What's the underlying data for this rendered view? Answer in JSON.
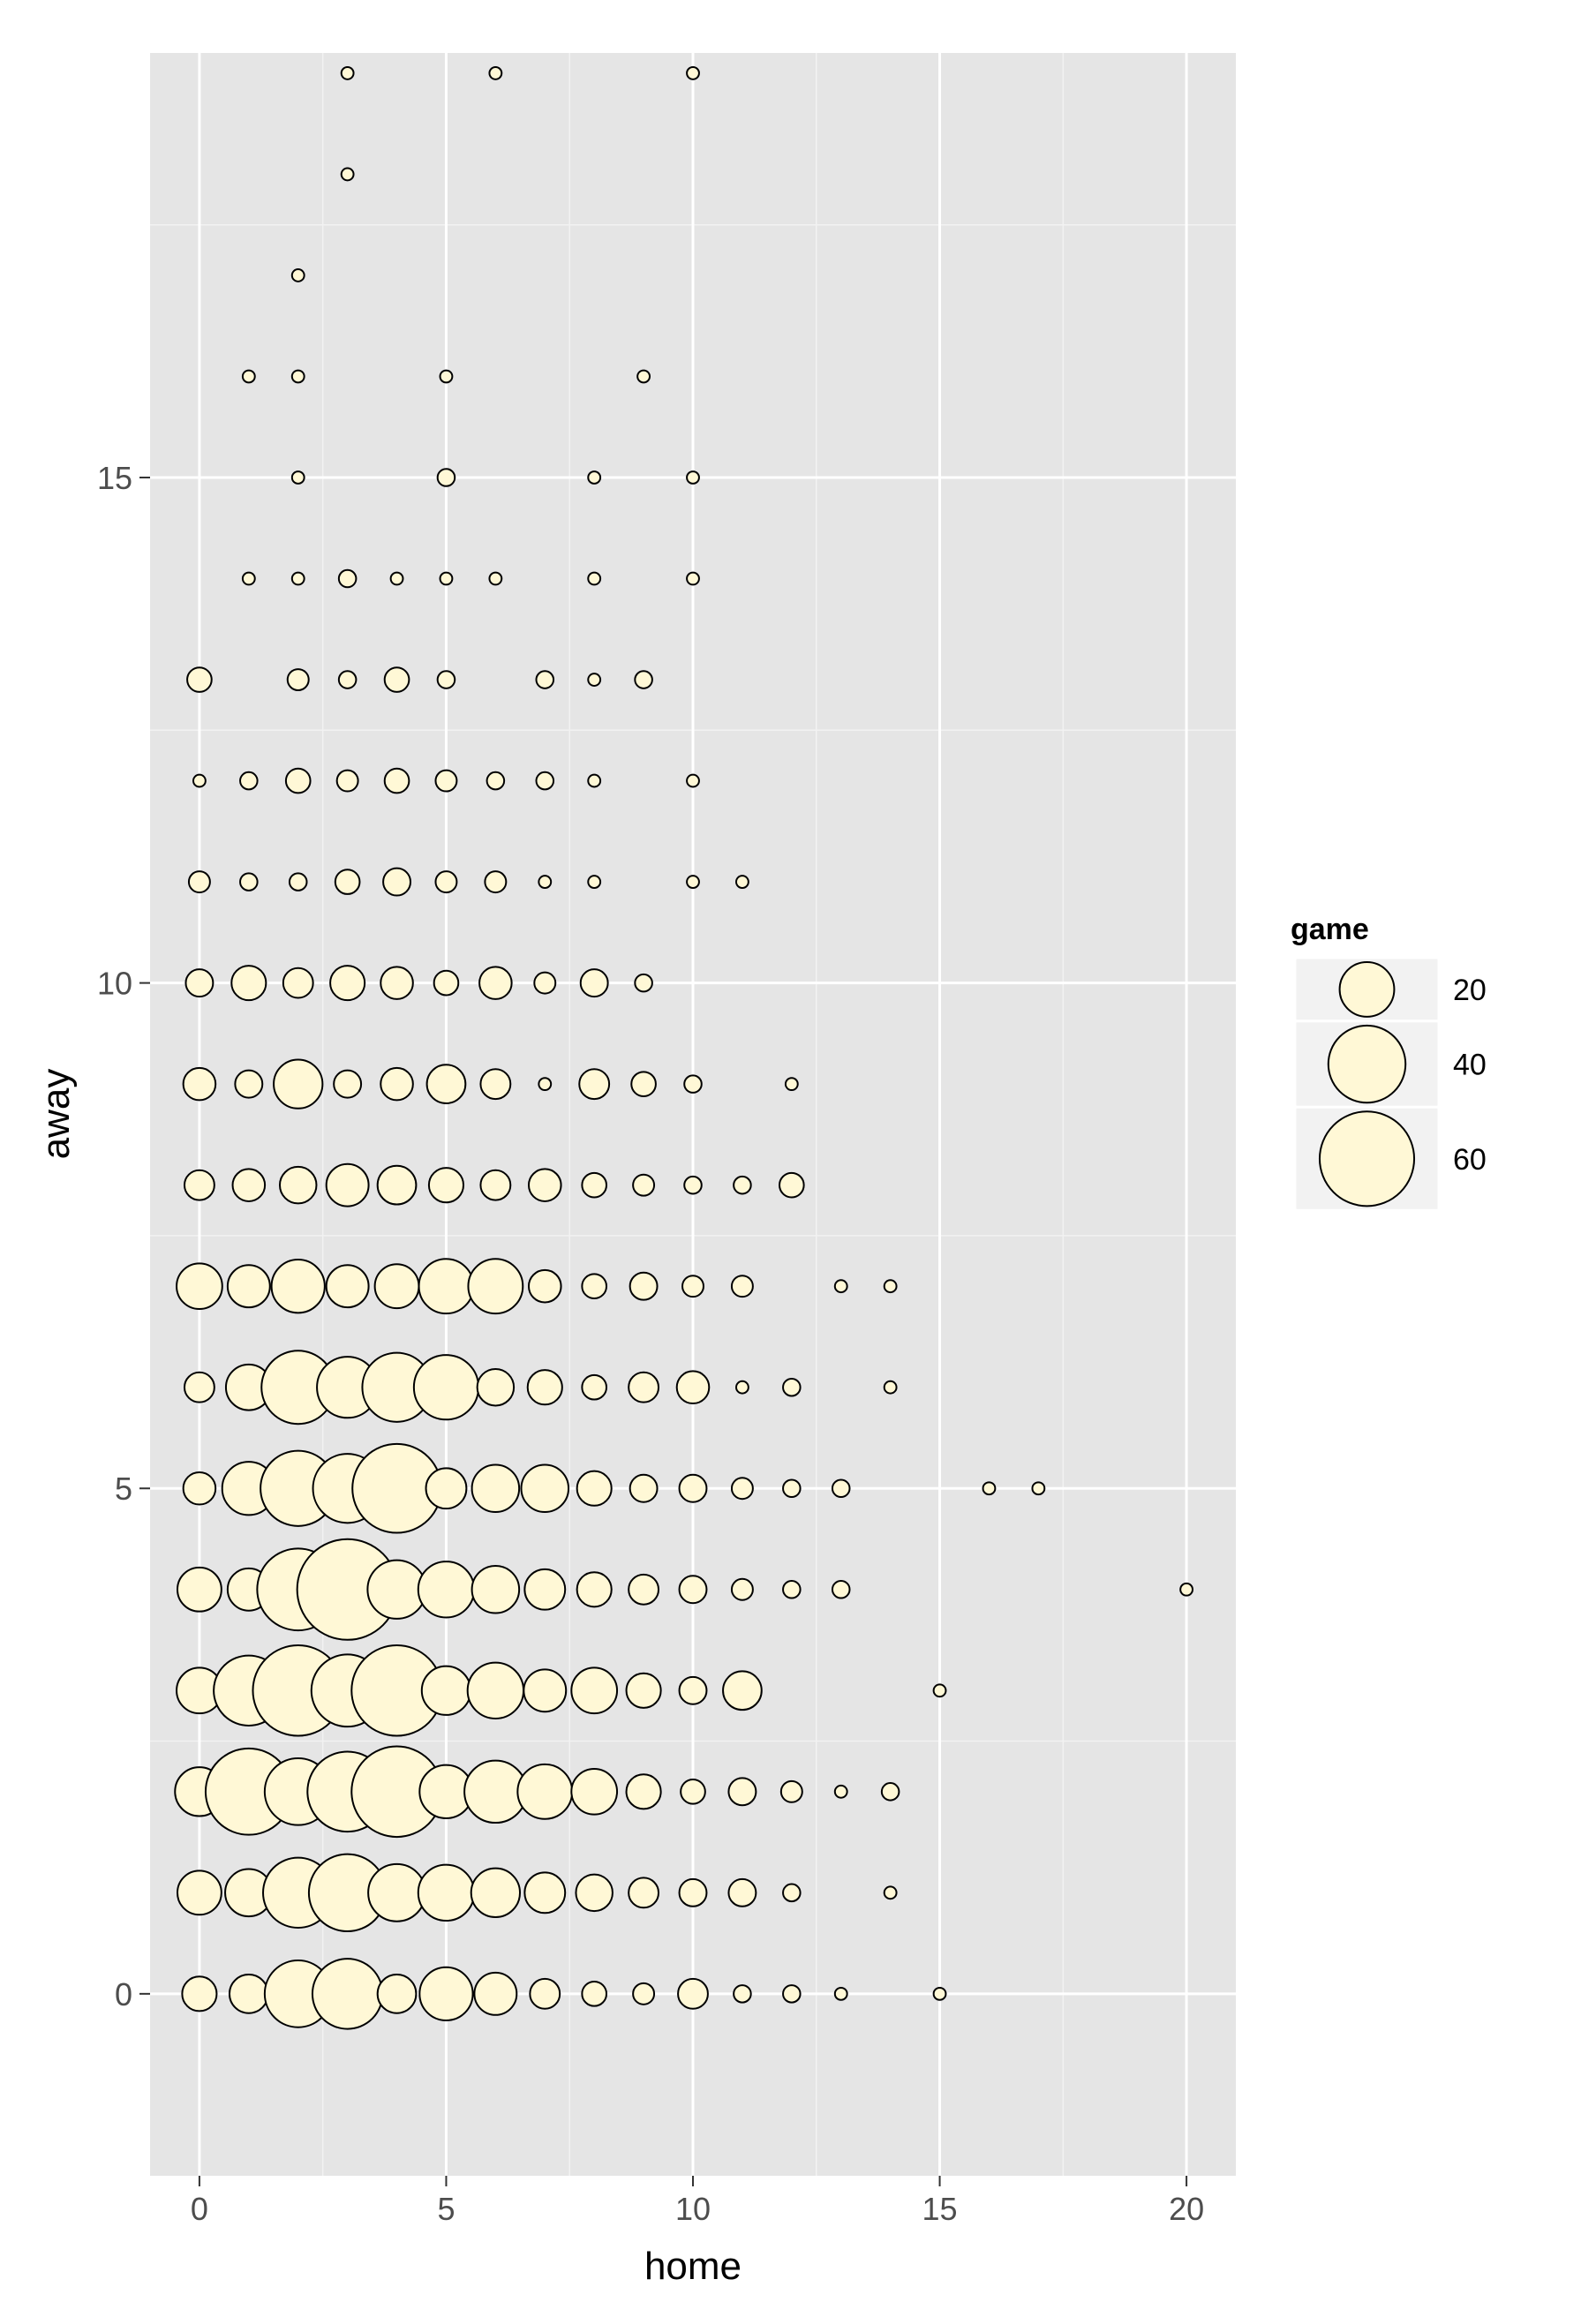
{
  "chart_data": {
    "type": "scatter",
    "title": "",
    "xlabel": "home",
    "ylabel": "away",
    "xlim": [
      -1,
      21
    ],
    "ylim": [
      -1.8,
      19.2
    ],
    "xticks": [
      0,
      5,
      10,
      15,
      20
    ],
    "yticks": [
      0,
      5,
      10,
      15
    ],
    "grid": true,
    "colors": {
      "panel": "#e5e5e5",
      "grid": "#ffffff",
      "point_fill": "#fff8d6",
      "point_stroke": "#000000"
    },
    "size_legend": {
      "title": "game",
      "placement": "right",
      "entries": [
        {
          "label": "20",
          "value": 20
        },
        {
          "label": "40",
          "value": 40
        },
        {
          "label": "60",
          "value": 60
        }
      ]
    },
    "points": [
      {
        "x": 3,
        "y": 19,
        "size": 1
      },
      {
        "x": 6,
        "y": 19,
        "size": 1
      },
      {
        "x": 10,
        "y": 19,
        "size": 1
      },
      {
        "x": 3,
        "y": 18,
        "size": 1
      },
      {
        "x": 2,
        "y": 17,
        "size": 1
      },
      {
        "x": 1,
        "y": 16,
        "size": 1
      },
      {
        "x": 2,
        "y": 16,
        "size": 1
      },
      {
        "x": 5,
        "y": 16,
        "size": 1
      },
      {
        "x": 9,
        "y": 16,
        "size": 1
      },
      {
        "x": 2,
        "y": 15,
        "size": 1
      },
      {
        "x": 5,
        "y": 15,
        "size": 2
      },
      {
        "x": 8,
        "y": 15,
        "size": 1
      },
      {
        "x": 10,
        "y": 15,
        "size": 1
      },
      {
        "x": 1,
        "y": 14,
        "size": 1
      },
      {
        "x": 2,
        "y": 14,
        "size": 1
      },
      {
        "x": 3,
        "y": 14,
        "size": 2
      },
      {
        "x": 4,
        "y": 14,
        "size": 1
      },
      {
        "x": 5,
        "y": 14,
        "size": 1
      },
      {
        "x": 6,
        "y": 14,
        "size": 1
      },
      {
        "x": 8,
        "y": 14,
        "size": 1
      },
      {
        "x": 10,
        "y": 14,
        "size": 1
      },
      {
        "x": 0,
        "y": 13,
        "size": 4
      },
      {
        "x": 2,
        "y": 13,
        "size": 3
      },
      {
        "x": 3,
        "y": 13,
        "size": 2
      },
      {
        "x": 4,
        "y": 13,
        "size": 4
      },
      {
        "x": 5,
        "y": 13,
        "size": 2
      },
      {
        "x": 7,
        "y": 13,
        "size": 2
      },
      {
        "x": 8,
        "y": 13,
        "size": 1
      },
      {
        "x": 9,
        "y": 13,
        "size": 2
      },
      {
        "x": 0,
        "y": 12,
        "size": 1
      },
      {
        "x": 1,
        "y": 12,
        "size": 2
      },
      {
        "x": 2,
        "y": 12,
        "size": 4
      },
      {
        "x": 3,
        "y": 12,
        "size": 3
      },
      {
        "x": 4,
        "y": 12,
        "size": 4
      },
      {
        "x": 5,
        "y": 12,
        "size": 3
      },
      {
        "x": 6,
        "y": 12,
        "size": 2
      },
      {
        "x": 7,
        "y": 12,
        "size": 2
      },
      {
        "x": 8,
        "y": 12,
        "size": 1
      },
      {
        "x": 10,
        "y": 12,
        "size": 1
      },
      {
        "x": 0,
        "y": 11,
        "size": 3
      },
      {
        "x": 1,
        "y": 11,
        "size": 2
      },
      {
        "x": 2,
        "y": 11,
        "size": 2
      },
      {
        "x": 3,
        "y": 11,
        "size": 4
      },
      {
        "x": 4,
        "y": 11,
        "size": 5
      },
      {
        "x": 5,
        "y": 11,
        "size": 3
      },
      {
        "x": 6,
        "y": 11,
        "size": 3
      },
      {
        "x": 7,
        "y": 11,
        "size": 1
      },
      {
        "x": 8,
        "y": 11,
        "size": 1
      },
      {
        "x": 10,
        "y": 11,
        "size": 1
      },
      {
        "x": 11,
        "y": 11,
        "size": 1
      },
      {
        "x": 0,
        "y": 10,
        "size": 5
      },
      {
        "x": 1,
        "y": 10,
        "size": 8
      },
      {
        "x": 2,
        "y": 10,
        "size": 6
      },
      {
        "x": 3,
        "y": 10,
        "size": 8
      },
      {
        "x": 4,
        "y": 10,
        "size": 7
      },
      {
        "x": 5,
        "y": 10,
        "size": 4
      },
      {
        "x": 6,
        "y": 10,
        "size": 7
      },
      {
        "x": 7,
        "y": 10,
        "size": 3
      },
      {
        "x": 8,
        "y": 10,
        "size": 5
      },
      {
        "x": 9,
        "y": 10,
        "size": 2
      },
      {
        "x": 0,
        "y": 9,
        "size": 7
      },
      {
        "x": 1,
        "y": 9,
        "size": 5
      },
      {
        "x": 2,
        "y": 9,
        "size": 16
      },
      {
        "x": 3,
        "y": 9,
        "size": 5
      },
      {
        "x": 4,
        "y": 9,
        "size": 7
      },
      {
        "x": 5,
        "y": 9,
        "size": 10
      },
      {
        "x": 6,
        "y": 9,
        "size": 6
      },
      {
        "x": 7,
        "y": 9,
        "size": 1
      },
      {
        "x": 8,
        "y": 9,
        "size": 6
      },
      {
        "x": 9,
        "y": 9,
        "size": 4
      },
      {
        "x": 10,
        "y": 9,
        "size": 2
      },
      {
        "x": 12,
        "y": 9,
        "size": 1
      },
      {
        "x": 0,
        "y": 8,
        "size": 6
      },
      {
        "x": 1,
        "y": 8,
        "size": 7
      },
      {
        "x": 2,
        "y": 8,
        "size": 9
      },
      {
        "x": 3,
        "y": 8,
        "size": 12
      },
      {
        "x": 4,
        "y": 8,
        "size": 10
      },
      {
        "x": 5,
        "y": 8,
        "size": 8
      },
      {
        "x": 6,
        "y": 8,
        "size": 6
      },
      {
        "x": 7,
        "y": 8,
        "size": 7
      },
      {
        "x": 8,
        "y": 8,
        "size": 4
      },
      {
        "x": 9,
        "y": 8,
        "size": 3
      },
      {
        "x": 10,
        "y": 8,
        "size": 2
      },
      {
        "x": 11,
        "y": 8,
        "size": 2
      },
      {
        "x": 12,
        "y": 8,
        "size": 4
      },
      {
        "x": 0,
        "y": 7,
        "size": 14
      },
      {
        "x": 1,
        "y": 7,
        "size": 12
      },
      {
        "x": 2,
        "y": 7,
        "size": 19
      },
      {
        "x": 3,
        "y": 7,
        "size": 12
      },
      {
        "x": 4,
        "y": 7,
        "size": 13
      },
      {
        "x": 5,
        "y": 7,
        "size": 20
      },
      {
        "x": 6,
        "y": 7,
        "size": 20
      },
      {
        "x": 7,
        "y": 7,
        "size": 7
      },
      {
        "x": 8,
        "y": 7,
        "size": 4
      },
      {
        "x": 9,
        "y": 7,
        "size": 5
      },
      {
        "x": 10,
        "y": 7,
        "size": 3
      },
      {
        "x": 11,
        "y": 7,
        "size": 3
      },
      {
        "x": 13,
        "y": 7,
        "size": 1
      },
      {
        "x": 14,
        "y": 7,
        "size": 1
      },
      {
        "x": 0,
        "y": 6,
        "size": 6
      },
      {
        "x": 1,
        "y": 6,
        "size": 14
      },
      {
        "x": 2,
        "y": 6,
        "size": 36
      },
      {
        "x": 3,
        "y": 6,
        "size": 25
      },
      {
        "x": 4,
        "y": 6,
        "size": 32
      },
      {
        "x": 5,
        "y": 6,
        "size": 28
      },
      {
        "x": 6,
        "y": 6,
        "size": 9
      },
      {
        "x": 7,
        "y": 6,
        "size": 8
      },
      {
        "x": 8,
        "y": 6,
        "size": 4
      },
      {
        "x": 9,
        "y": 6,
        "size": 6
      },
      {
        "x": 10,
        "y": 6,
        "size": 7
      },
      {
        "x": 11,
        "y": 6,
        "size": 1
      },
      {
        "x": 12,
        "y": 6,
        "size": 2
      },
      {
        "x": 14,
        "y": 6,
        "size": 1
      },
      {
        "x": 0,
        "y": 5,
        "size": 7
      },
      {
        "x": 1,
        "y": 5,
        "size": 19
      },
      {
        "x": 2,
        "y": 5,
        "size": 38
      },
      {
        "x": 3,
        "y": 5,
        "size": 32
      },
      {
        "x": 4,
        "y": 5,
        "size": 53
      },
      {
        "x": 5,
        "y": 5,
        "size": 11
      },
      {
        "x": 6,
        "y": 5,
        "size": 15
      },
      {
        "x": 7,
        "y": 5,
        "size": 15
      },
      {
        "x": 8,
        "y": 5,
        "size": 8
      },
      {
        "x": 9,
        "y": 5,
        "size": 5
      },
      {
        "x": 10,
        "y": 5,
        "size": 5
      },
      {
        "x": 11,
        "y": 5,
        "size": 3
      },
      {
        "x": 12,
        "y": 5,
        "size": 2
      },
      {
        "x": 13,
        "y": 5,
        "size": 2
      },
      {
        "x": 16,
        "y": 5,
        "size": 1
      },
      {
        "x": 17,
        "y": 5,
        "size": 1
      },
      {
        "x": 0,
        "y": 4,
        "size": 13
      },
      {
        "x": 1,
        "y": 4,
        "size": 12
      },
      {
        "x": 2,
        "y": 4,
        "size": 45
      },
      {
        "x": 3,
        "y": 4,
        "size": 68
      },
      {
        "x": 4,
        "y": 4,
        "size": 23
      },
      {
        "x": 5,
        "y": 4,
        "size": 21
      },
      {
        "x": 6,
        "y": 4,
        "size": 15
      },
      {
        "x": 7,
        "y": 4,
        "size": 11
      },
      {
        "x": 8,
        "y": 4,
        "size": 8
      },
      {
        "x": 9,
        "y": 4,
        "size": 6
      },
      {
        "x": 10,
        "y": 4,
        "size": 5
      },
      {
        "x": 11,
        "y": 4,
        "size": 3
      },
      {
        "x": 12,
        "y": 4,
        "size": 2
      },
      {
        "x": 13,
        "y": 4,
        "size": 2
      },
      {
        "x": 20,
        "y": 4,
        "size": 1
      },
      {
        "x": 0,
        "y": 3,
        "size": 14
      },
      {
        "x": 1,
        "y": 3,
        "size": 33
      },
      {
        "x": 2,
        "y": 3,
        "size": 55
      },
      {
        "x": 3,
        "y": 3,
        "size": 35
      },
      {
        "x": 4,
        "y": 3,
        "size": 55
      },
      {
        "x": 5,
        "y": 3,
        "size": 16
      },
      {
        "x": 6,
        "y": 3,
        "size": 21
      },
      {
        "x": 7,
        "y": 3,
        "size": 12
      },
      {
        "x": 8,
        "y": 3,
        "size": 14
      },
      {
        "x": 9,
        "y": 3,
        "size": 8
      },
      {
        "x": 10,
        "y": 3,
        "size": 5
      },
      {
        "x": 11,
        "y": 3,
        "size": 10
      },
      {
        "x": 15,
        "y": 3,
        "size": 1
      },
      {
        "x": 0,
        "y": 2,
        "size": 16
      },
      {
        "x": 1,
        "y": 2,
        "size": 50
      },
      {
        "x": 2,
        "y": 2,
        "size": 30
      },
      {
        "x": 3,
        "y": 2,
        "size": 43
      },
      {
        "x": 4,
        "y": 2,
        "size": 55
      },
      {
        "x": 5,
        "y": 2,
        "size": 19
      },
      {
        "x": 6,
        "y": 2,
        "size": 26
      },
      {
        "x": 7,
        "y": 2,
        "size": 20
      },
      {
        "x": 8,
        "y": 2,
        "size": 14
      },
      {
        "x": 9,
        "y": 2,
        "size": 8
      },
      {
        "x": 10,
        "y": 2,
        "size": 4
      },
      {
        "x": 11,
        "y": 2,
        "size": 5
      },
      {
        "x": 12,
        "y": 2,
        "size": 3
      },
      {
        "x": 13,
        "y": 2,
        "size": 1
      },
      {
        "x": 14,
        "y": 2,
        "size": 2
      },
      {
        "x": 0,
        "y": 1,
        "size": 13
      },
      {
        "x": 1,
        "y": 1,
        "size": 15
      },
      {
        "x": 2,
        "y": 1,
        "size": 33
      },
      {
        "x": 3,
        "y": 1,
        "size": 40
      },
      {
        "x": 4,
        "y": 1,
        "size": 22
      },
      {
        "x": 5,
        "y": 1,
        "size": 21
      },
      {
        "x": 6,
        "y": 1,
        "size": 16
      },
      {
        "x": 7,
        "y": 1,
        "size": 11
      },
      {
        "x": 8,
        "y": 1,
        "size": 9
      },
      {
        "x": 9,
        "y": 1,
        "size": 6
      },
      {
        "x": 10,
        "y": 1,
        "size": 5
      },
      {
        "x": 11,
        "y": 1,
        "size": 5
      },
      {
        "x": 12,
        "y": 1,
        "size": 2
      },
      {
        "x": 14,
        "y": 1,
        "size": 1
      },
      {
        "x": 0,
        "y": 0,
        "size": 8
      },
      {
        "x": 1,
        "y": 0,
        "size": 10
      },
      {
        "x": 2,
        "y": 0,
        "size": 30
      },
      {
        "x": 3,
        "y": 0,
        "size": 33
      },
      {
        "x": 4,
        "y": 0,
        "size": 10
      },
      {
        "x": 5,
        "y": 0,
        "size": 19
      },
      {
        "x": 6,
        "y": 0,
        "size": 12
      },
      {
        "x": 7,
        "y": 0,
        "size": 6
      },
      {
        "x": 8,
        "y": 0,
        "size": 4
      },
      {
        "x": 9,
        "y": 0,
        "size": 3
      },
      {
        "x": 10,
        "y": 0,
        "size": 6
      },
      {
        "x": 11,
        "y": 0,
        "size": 2
      },
      {
        "x": 12,
        "y": 0,
        "size": 2
      },
      {
        "x": 13,
        "y": 0,
        "size": 1
      },
      {
        "x": 15,
        "y": 0,
        "size": 1
      }
    ]
  }
}
